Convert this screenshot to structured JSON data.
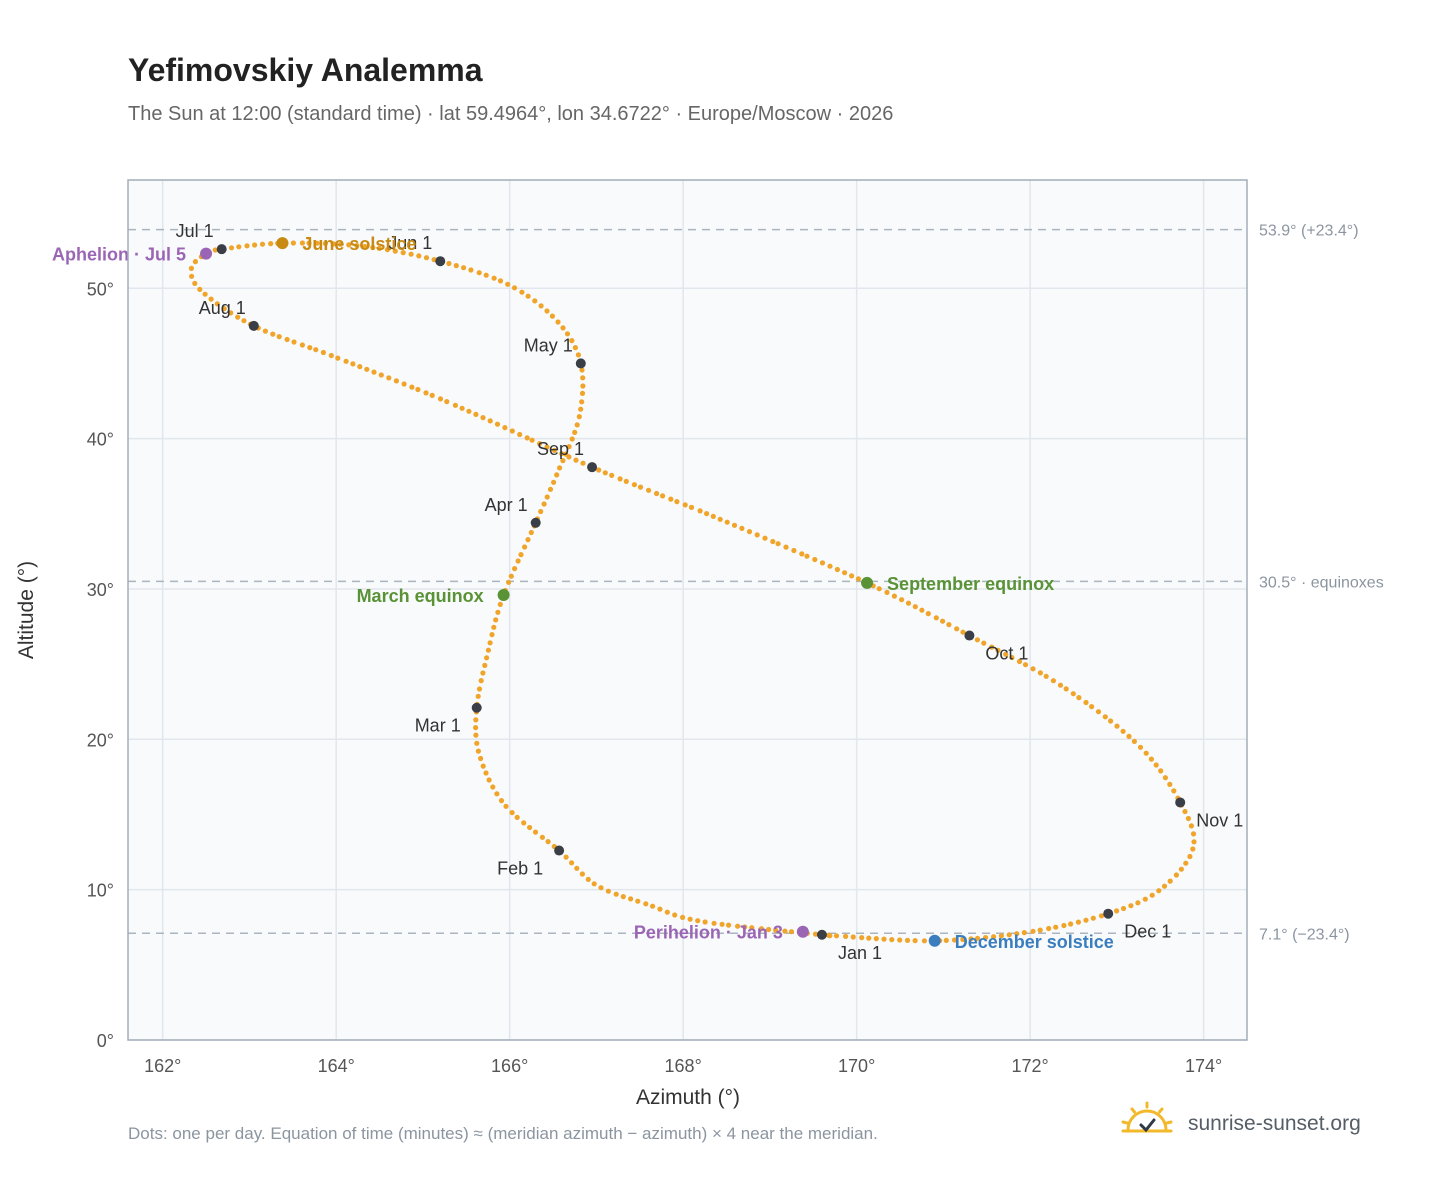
{
  "title": "Yefimovskiy Analemma",
  "subtitle": "The Sun at 12:00 (standard time) · lat 59.4964°, lon 34.6722° · Europe/Moscow · 2026",
  "footnote": "Dots: one per day. Equation of time (minutes) ≈ (meridian azimuth − azimuth) × 4 near the meridian.",
  "brand": {
    "name": "sunrise-sunset.org",
    "icon": "sun-check-icon"
  },
  "colors": {
    "path": "#f0a52a",
    "month_marker": "#3a3f47",
    "solstice_june": "#c88a12",
    "solstice_december": "#3b7ec0",
    "equinox": "#5a9236",
    "apsis": "#9b65b5",
    "plot_bg": "#f8fafc",
    "grid": "#e2e7ed",
    "reference_line": "#aab5bf"
  },
  "chart_data": {
    "type": "scatter",
    "xlabel": "Azimuth (°)",
    "ylabel": "Altitude (°)",
    "xlim": [
      161.6,
      174.5
    ],
    "ylim": [
      0,
      57.2
    ],
    "xticks": [
      162,
      164,
      166,
      168,
      170,
      172,
      174
    ],
    "xtick_labels": [
      "162°",
      "164°",
      "166°",
      "168°",
      "170°",
      "172°",
      "174°"
    ],
    "yticks": [
      0,
      10,
      20,
      30,
      40,
      50
    ],
    "ytick_labels": [
      "0°",
      "10°",
      "20°",
      "30°",
      "40°",
      "50°"
    ],
    "grid": true,
    "reference_lines": [
      {
        "y": 53.9,
        "label": "53.9° (+23.4°)"
      },
      {
        "y": 30.5,
        "label": "30.5° · equinoxes"
      },
      {
        "y": 7.1,
        "label": "7.1° (−23.4°)"
      }
    ],
    "path_nodes": [
      {
        "date": "Jan 1",
        "az": 169.6,
        "alt": 7.0
      },
      {
        "date": "Jan 8",
        "az": 168.2,
        "alt": 7.9
      },
      {
        "date": "Jan 15",
        "az": 167.6,
        "alt": 9.0
      },
      {
        "date": "Jan 22",
        "az": 167.0,
        "alt": 10.3
      },
      {
        "date": "Feb 1",
        "az": 166.57,
        "alt": 12.6
      },
      {
        "date": "Feb 10",
        "az": 165.95,
        "alt": 15.6
      },
      {
        "date": "Feb 20",
        "az": 165.65,
        "alt": 19.0
      },
      {
        "date": "Mar 1",
        "az": 165.62,
        "alt": 22.1
      },
      {
        "date": "Mar 10",
        "az": 165.75,
        "alt": 25.8
      },
      {
        "date": "Mar 20",
        "az": 165.93,
        "alt": 29.6
      },
      {
        "date": "Apr 1",
        "az": 166.3,
        "alt": 34.4
      },
      {
        "date": "Apr 10",
        "az": 166.55,
        "alt": 37.7
      },
      {
        "date": "Apr 20",
        "az": 166.8,
        "alt": 41.4
      },
      {
        "date": "May 1",
        "az": 166.82,
        "alt": 45.0
      },
      {
        "date": "May 10",
        "az": 166.55,
        "alt": 47.8
      },
      {
        "date": "May 20",
        "az": 166.0,
        "alt": 50.2
      },
      {
        "date": "Jun 1",
        "az": 165.2,
        "alt": 51.8
      },
      {
        "date": "Jun 10",
        "az": 164.3,
        "alt": 52.8
      },
      {
        "date": "Jun 21",
        "az": 163.38,
        "alt": 53.0
      },
      {
        "date": "Jul 1",
        "az": 162.68,
        "alt": 52.6
      },
      {
        "date": "Jul 5",
        "az": 162.5,
        "alt": 52.3
      },
      {
        "date": "Jul 12",
        "az": 162.33,
        "alt": 51.3
      },
      {
        "date": "Jul 20",
        "az": 162.45,
        "alt": 49.8
      },
      {
        "date": "Aug 1",
        "az": 163.05,
        "alt": 47.5
      },
      {
        "date": "Aug 10",
        "az": 164.0,
        "alt": 45.4
      },
      {
        "date": "Aug 20",
        "az": 165.3,
        "alt": 42.4
      },
      {
        "date": "Sep 1",
        "az": 166.95,
        "alt": 38.1
      },
      {
        "date": "Sep 10",
        "az": 168.4,
        "alt": 34.7
      },
      {
        "date": "Sep 23",
        "az": 170.12,
        "alt": 30.4
      },
      {
        "date": "Oct 1",
        "az": 171.3,
        "alt": 26.9
      },
      {
        "date": "Oct 10",
        "az": 172.35,
        "alt": 23.6
      },
      {
        "date": "Oct 20",
        "az": 173.25,
        "alt": 19.6
      },
      {
        "date": "Nov 1",
        "az": 173.73,
        "alt": 15.8
      },
      {
        "date": "Nov 10",
        "az": 173.88,
        "alt": 12.8
      },
      {
        "date": "Nov 20",
        "az": 173.5,
        "alt": 10.0
      },
      {
        "date": "Dec 1",
        "az": 172.9,
        "alt": 8.4
      },
      {
        "date": "Dec 10",
        "az": 172.0,
        "alt": 7.2
      },
      {
        "date": "Dec 21",
        "az": 170.9,
        "alt": 6.6
      },
      {
        "date": "Dec 31",
        "az": 169.72,
        "alt": 6.95
      }
    ],
    "month_markers": [
      {
        "label": "Jan 1",
        "az": 169.6,
        "alt": 7.0,
        "pos": "below-right"
      },
      {
        "label": "Feb 1",
        "az": 166.57,
        "alt": 12.6,
        "pos": "below-left"
      },
      {
        "label": "Mar 1",
        "az": 165.62,
        "alt": 22.1,
        "pos": "below-left"
      },
      {
        "label": "Apr 1",
        "az": 166.3,
        "alt": 34.4,
        "pos": "above-left"
      },
      {
        "label": "May 1",
        "az": 166.82,
        "alt": 45.0,
        "pos": "above-left"
      },
      {
        "label": "Jun 1",
        "az": 165.2,
        "alt": 51.8,
        "pos": "above-left"
      },
      {
        "label": "Jul 1",
        "az": 162.68,
        "alt": 52.6,
        "pos": "above-left"
      },
      {
        "label": "Aug 1",
        "az": 163.05,
        "alt": 47.5,
        "pos": "above-left"
      },
      {
        "label": "Sep 1",
        "az": 166.95,
        "alt": 38.1,
        "pos": "above-left"
      },
      {
        "label": "Oct 1",
        "az": 171.3,
        "alt": 26.9,
        "pos": "below-right"
      },
      {
        "label": "Nov 1",
        "az": 173.73,
        "alt": 15.8,
        "pos": "below-right"
      },
      {
        "label": "Dec 1",
        "az": 172.9,
        "alt": 8.4,
        "pos": "below-right"
      }
    ],
    "events": [
      {
        "label": "June solstice",
        "az": 163.38,
        "alt": 53.0,
        "color": "#c88a12",
        "pos": "right"
      },
      {
        "label": "December solstice",
        "az": 170.9,
        "alt": 6.6,
        "color": "#3b7ec0",
        "pos": "right"
      },
      {
        "label": "March equinox",
        "az": 165.93,
        "alt": 29.6,
        "color": "#5a9236",
        "pos": "left"
      },
      {
        "label": "September equinox",
        "az": 170.12,
        "alt": 30.4,
        "color": "#5a9236",
        "pos": "right"
      },
      {
        "label": "Aphelion · Jul 5",
        "az": 162.5,
        "alt": 52.3,
        "color": "#9b65b5",
        "pos": "left"
      },
      {
        "label": "Perihelion · Jan 3",
        "az": 169.38,
        "alt": 7.2,
        "color": "#9b65b5",
        "pos": "left"
      }
    ]
  }
}
